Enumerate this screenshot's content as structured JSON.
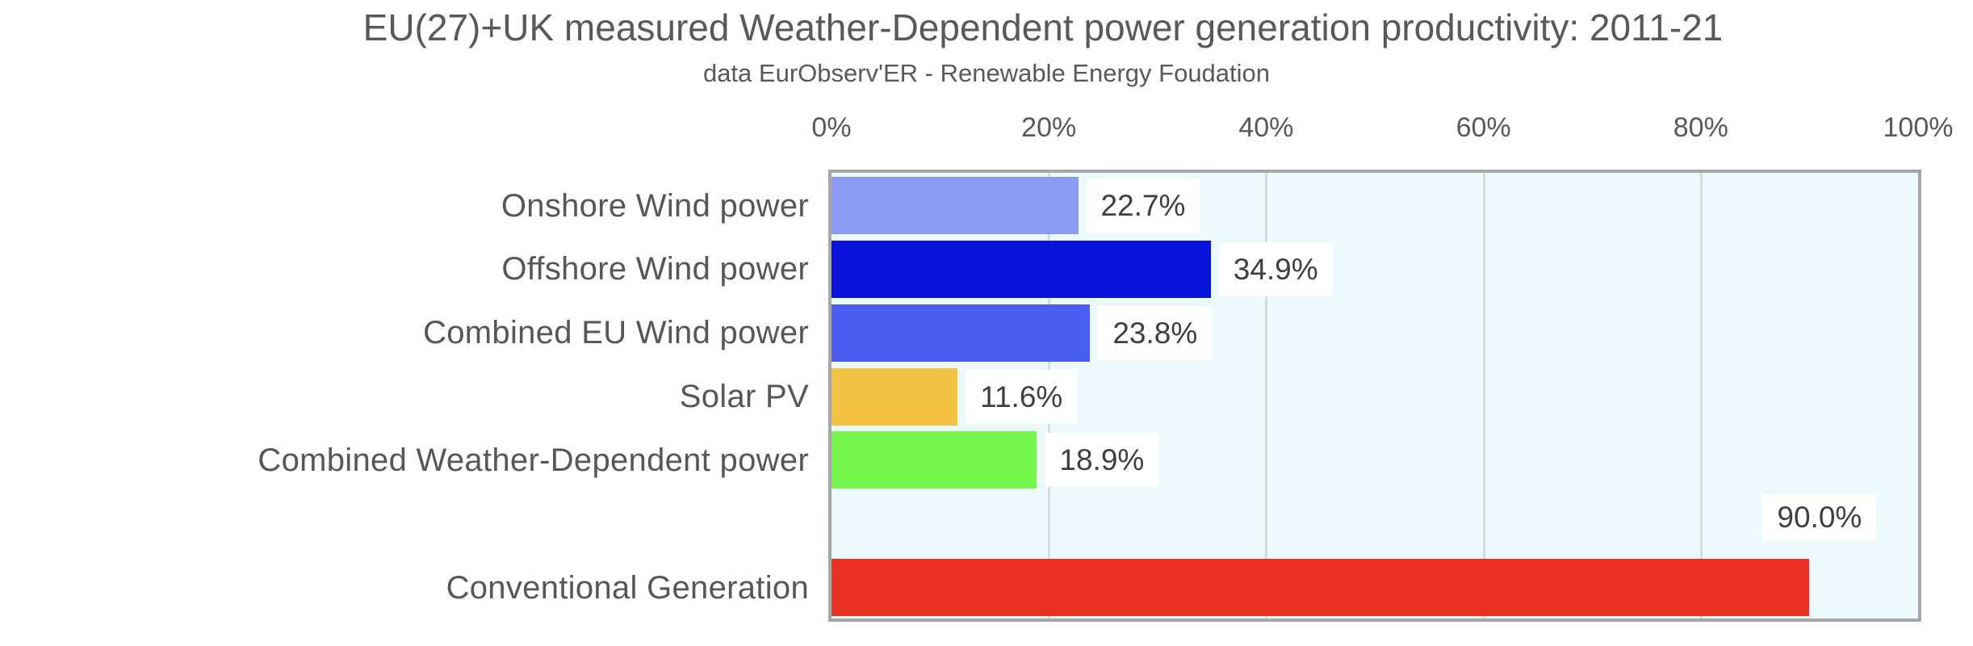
{
  "header": {
    "title": "EU(27)+UK measured Weather-Dependent power generation productivity: 2011-21",
    "subtitle": "data EurObserv'ER - Renewable Energy Foudation"
  },
  "chart_data": {
    "type": "bar",
    "orientation": "horizontal",
    "title": "EU(27)+UK measured Weather-Dependent power generation productivity: 2011-21",
    "subtitle": "data EurObserv'ER - Renewable Energy Foudation",
    "xlabel": "",
    "ylabel": "",
    "xlim": [
      0,
      100
    ],
    "x_ticks": [
      "0%",
      "20%",
      "40%",
      "60%",
      "80%",
      "100%"
    ],
    "x_tick_values": [
      0,
      20,
      40,
      60,
      80,
      100
    ],
    "grid": true,
    "axis_position": "top",
    "categories": [
      "Onshore Wind power",
      "Offshore Wind power",
      "Combined EU Wind power",
      "Solar PV",
      "Combined Weather-Dependent power",
      "",
      "Conventional Generation"
    ],
    "values": [
      22.7,
      34.9,
      23.8,
      11.6,
      18.9,
      null,
      90.0
    ],
    "value_labels": [
      "22.7%",
      "34.9%",
      "23.8%",
      "11.6%",
      "18.9%",
      "",
      "90.0%"
    ],
    "bar_colors": [
      "#8b9bf4",
      "#0713d8",
      "#4c5ef2",
      "#f2c242",
      "#76f64d",
      null,
      "#e93222"
    ],
    "label_placement": [
      "right",
      "right",
      "right",
      "right",
      "right",
      "",
      "above-end"
    ],
    "plot_background": "#ecfafe",
    "gridline_color": "#d6dcdd",
    "border_color": "#a7a7a7",
    "text_color": "#595959",
    "value_text_color": "#3f3f3f"
  }
}
